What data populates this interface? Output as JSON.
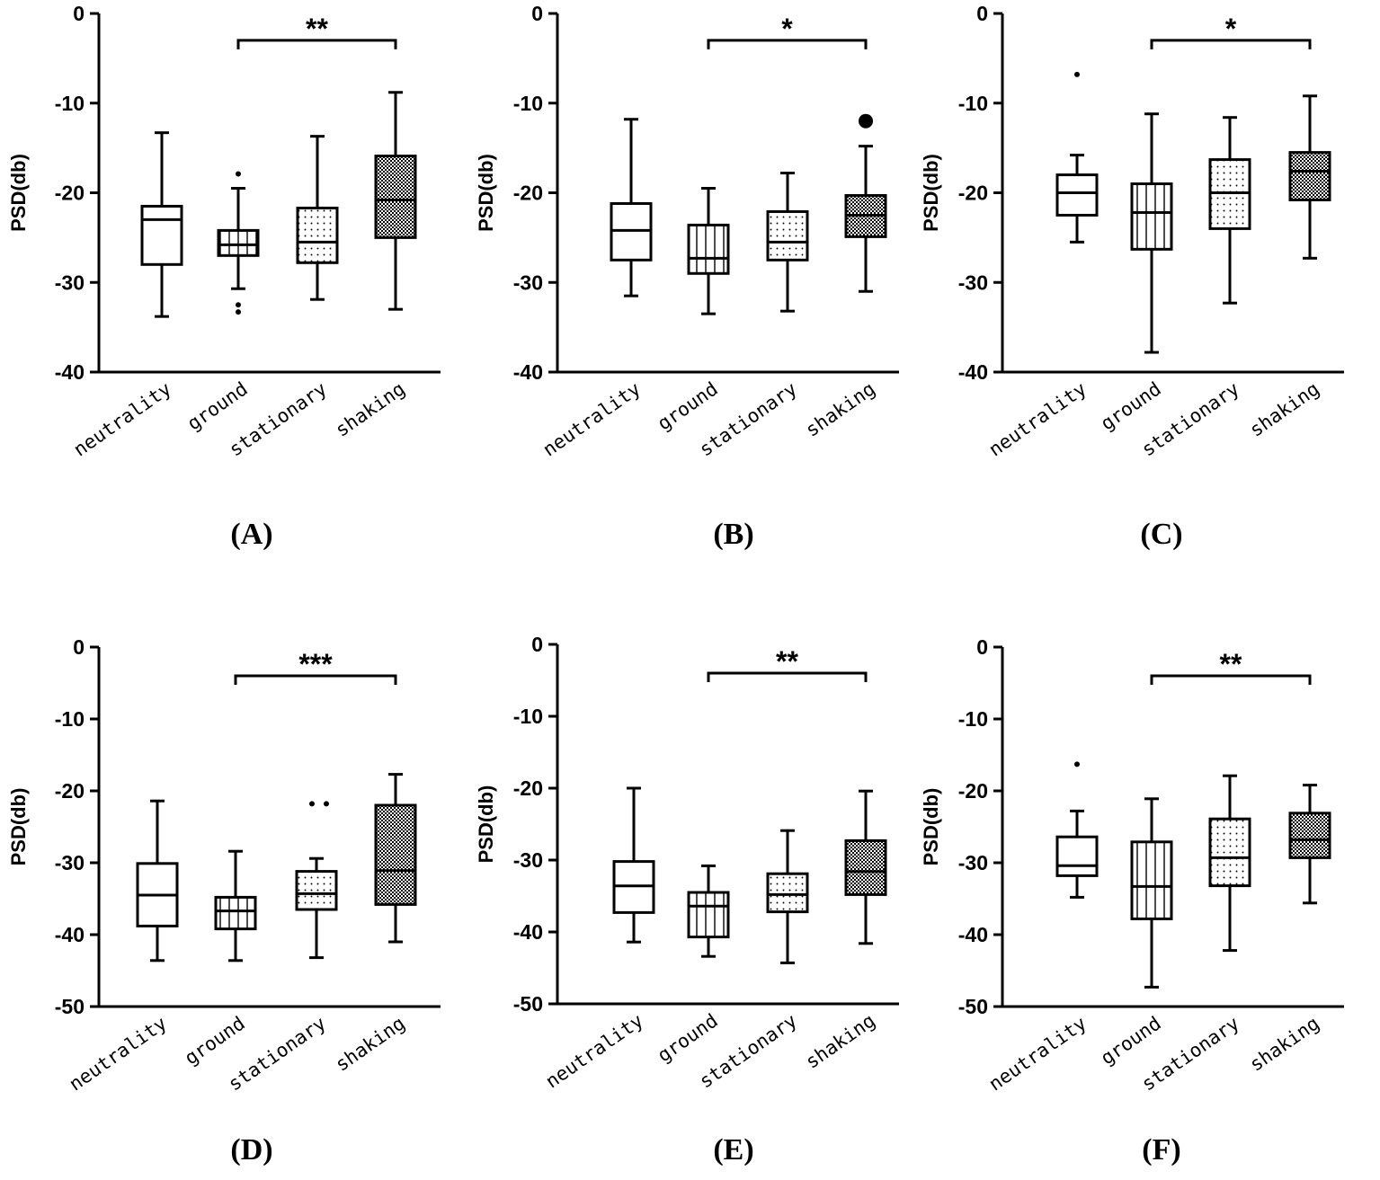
{
  "figure": {
    "categories": [
      "neutrality",
      "ground",
      "stationary",
      "shaking"
    ],
    "patterns": [
      "none",
      "vertical-lines",
      "dots",
      "checker"
    ],
    "ylabel": "PSD(db)"
  },
  "chart_data": [
    {
      "type": "box",
      "panel": "(A)",
      "ylabel": "PSD(db)",
      "ylim": [
        -40,
        0
      ],
      "yticks": [
        "0",
        "-10",
        "-20",
        "-30",
        "-40"
      ],
      "ytick_values": [
        0,
        -10,
        -20,
        -30,
        -40
      ],
      "categories": [
        "neutrality",
        "ground",
        "stationary",
        "shaking"
      ],
      "boxes": [
        {
          "whisker_low": -33.8,
          "q1": -28.0,
          "median": -23.0,
          "q3": -21.5,
          "whisker_high": -13.3,
          "outliers": []
        },
        {
          "whisker_low": -30.7,
          "q1": -27.0,
          "median": -25.8,
          "q3": -24.2,
          "whisker_high": -19.5,
          "outliers": [
            -17.9,
            -32.5,
            -33.3
          ]
        },
        {
          "whisker_low": -31.9,
          "q1": -27.8,
          "median": -25.5,
          "q3": -21.7,
          "whisker_high": -13.7,
          "outliers": []
        },
        {
          "whisker_low": -33.0,
          "q1": -25.0,
          "median": -20.8,
          "q3": -15.9,
          "whisker_high": -8.8,
          "outliers": []
        }
      ],
      "significance": {
        "from": "ground",
        "to": "shaking",
        "label": "**",
        "y": -3
      }
    },
    {
      "type": "box",
      "panel": "(B)",
      "ylabel": "PSD(db)",
      "ylim": [
        -40,
        0
      ],
      "yticks": [
        "0",
        "-10",
        "-20",
        "-30",
        "-40"
      ],
      "ytick_values": [
        0,
        -10,
        -20,
        -30,
        -40
      ],
      "categories": [
        "neutrality",
        "ground",
        "stationary",
        "shaking"
      ],
      "boxes": [
        {
          "whisker_low": -31.5,
          "q1": -27.5,
          "median": -24.2,
          "q3": -21.2,
          "whisker_high": -11.8,
          "outliers": []
        },
        {
          "whisker_low": -33.5,
          "q1": -29.0,
          "median": -27.3,
          "q3": -23.6,
          "whisker_high": -19.5,
          "outliers": []
        },
        {
          "whisker_low": -33.2,
          "q1": -27.5,
          "median": -25.5,
          "q3": -22.1,
          "whisker_high": -17.8,
          "outliers": []
        },
        {
          "whisker_low": -31.0,
          "q1": -24.9,
          "median": -22.5,
          "q3": -20.3,
          "whisker_high": -14.8,
          "outliers": [
            -12.0
          ]
        }
      ],
      "significance": {
        "from": "ground",
        "to": "shaking",
        "label": "*",
        "y": -3
      }
    },
    {
      "type": "box",
      "panel": "(C)",
      "ylabel": "PSD(db)",
      "ylim": [
        -40,
        0
      ],
      "yticks": [
        "0",
        "-10",
        "-20",
        "-30",
        "-40"
      ],
      "ytick_values": [
        0,
        -10,
        -20,
        -30,
        -40
      ],
      "categories": [
        "neutrality",
        "ground",
        "stationary",
        "shaking"
      ],
      "boxes": [
        {
          "whisker_low": -25.5,
          "q1": -22.5,
          "median": -20.0,
          "q3": -18.0,
          "whisker_high": -15.8,
          "outliers": [
            -6.8
          ]
        },
        {
          "whisker_low": -37.8,
          "q1": -26.3,
          "median": -22.2,
          "q3": -19.0,
          "whisker_high": -11.2,
          "outliers": []
        },
        {
          "whisker_low": -32.3,
          "q1": -24.0,
          "median": -20.0,
          "q3": -16.3,
          "whisker_high": -11.6,
          "outliers": []
        },
        {
          "whisker_low": -27.3,
          "q1": -20.8,
          "median": -17.6,
          "q3": -15.5,
          "whisker_high": -9.2,
          "outliers": []
        }
      ],
      "significance": {
        "from": "ground",
        "to": "shaking",
        "label": "*",
        "y": -3
      }
    },
    {
      "type": "box",
      "panel": "(D)",
      "ylabel": "PSD(db)",
      "ylim": [
        -50,
        0
      ],
      "yticks": [
        "0",
        "-10",
        "-20",
        "-30",
        "-40",
        "-50"
      ],
      "ytick_values": [
        0,
        -10,
        -20,
        -30,
        -40,
        -50
      ],
      "categories": [
        "neutrality",
        "ground",
        "stationary",
        "shaking"
      ],
      "boxes": [
        {
          "whisker_low": -43.6,
          "q1": -38.8,
          "median": -34.5,
          "q3": -30.1,
          "whisker_high": -21.4,
          "outliers": []
        },
        {
          "whisker_low": -43.6,
          "q1": -39.2,
          "median": -36.7,
          "q3": -34.8,
          "whisker_high": -28.4,
          "outliers": []
        },
        {
          "whisker_low": -43.2,
          "q1": -36.5,
          "median": -34.3,
          "q3": -31.2,
          "whisker_high": -29.4,
          "outliers": [
            -21.8,
            -21.8
          ]
        },
        {
          "whisker_low": -41.0,
          "q1": -35.8,
          "median": -31.1,
          "q3": -22.0,
          "whisker_high": -17.7,
          "outliers": []
        }
      ],
      "significance": {
        "from": "ground",
        "to": "shaking",
        "label": "***",
        "y": -4
      }
    },
    {
      "type": "box",
      "panel": "(E)",
      "ylabel": "PSD(db)",
      "ylim": [
        -50,
        0
      ],
      "yticks": [
        "0",
        "-10",
        "-20",
        "-30",
        "-40",
        "-50"
      ],
      "ytick_values": [
        0,
        -10,
        -20,
        -30,
        -40,
        -50
      ],
      "categories": [
        "neutrality",
        "ground",
        "stationary",
        "shaking"
      ],
      "boxes": [
        {
          "whisker_low": -41.4,
          "q1": -37.3,
          "median": -33.6,
          "q3": -30.2,
          "whisker_high": -20.0,
          "outliers": []
        },
        {
          "whisker_low": -43.4,
          "q1": -40.7,
          "median": -36.4,
          "q3": -34.5,
          "whisker_high": -30.8,
          "outliers": []
        },
        {
          "whisker_low": -44.3,
          "q1": -37.2,
          "median": -34.8,
          "q3": -31.9,
          "whisker_high": -25.9,
          "outliers": []
        },
        {
          "whisker_low": -41.6,
          "q1": -34.8,
          "median": -31.6,
          "q3": -27.3,
          "whisker_high": -20.4,
          "outliers": []
        }
      ],
      "significance": {
        "from": "ground",
        "to": "shaking",
        "label": "**",
        "y": -4
      }
    },
    {
      "type": "box",
      "panel": "(F)",
      "ylabel": "PSD(db)",
      "ylim": [
        -50,
        0
      ],
      "yticks": [
        "0",
        "-10",
        "-20",
        "-30",
        "-40",
        "-50"
      ],
      "ytick_values": [
        0,
        -10,
        -20,
        -30,
        -40,
        -50
      ],
      "categories": [
        "neutrality",
        "ground",
        "stationary",
        "shaking"
      ],
      "boxes": [
        {
          "whisker_low": -34.8,
          "q1": -31.8,
          "median": -30.4,
          "q3": -26.4,
          "whisker_high": -22.8,
          "outliers": [
            -16.3
          ]
        },
        {
          "whisker_low": -47.3,
          "q1": -37.8,
          "median": -33.3,
          "q3": -27.1,
          "whisker_high": -21.1,
          "outliers": []
        },
        {
          "whisker_low": -42.2,
          "q1": -33.2,
          "median": -29.3,
          "q3": -23.9,
          "whisker_high": -17.9,
          "outliers": []
        },
        {
          "whisker_low": -35.6,
          "q1": -29.3,
          "median": -26.8,
          "q3": -23.1,
          "whisker_high": -19.2,
          "outliers": []
        }
      ],
      "significance": {
        "from": "ground",
        "to": "shaking",
        "label": "**",
        "y": -4
      }
    }
  ]
}
